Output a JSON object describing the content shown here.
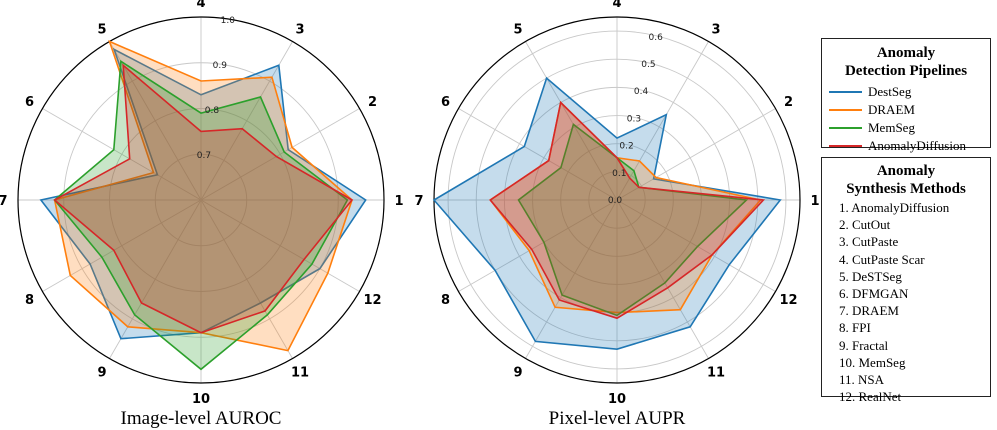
{
  "pipelines_legend": {
    "title_line1": "Anomaly",
    "title_line2": "Detection Pipelines",
    "items": [
      {
        "label": "DestSeg",
        "color": "#1f77b4"
      },
      {
        "label": "DRAEM",
        "color": "#ff7f0e"
      },
      {
        "label": "MemSeg",
        "color": "#2ca02c"
      },
      {
        "label": "AnomalyDiffusion",
        "color": "#d62728"
      }
    ]
  },
  "methods_legend": {
    "title_line1": "Anomaly",
    "title_line2": "Synthesis Methods",
    "items": [
      "1. AnomalyDiffusion",
      "2. CutOut",
      "3. CutPaste",
      "4. CutPaste Scar",
      "5. DeSTSeg",
      "6. DFMGAN",
      "7. DRAEM",
      "8. FPI",
      "9. Fractal",
      "10. MemSeg",
      "11. NSA",
      "12. RealNet"
    ]
  },
  "chart_data": [
    {
      "type": "radar",
      "title": "Image-level AUROC",
      "categories": [
        "1",
        "2",
        "3",
        "4",
        "5",
        "6",
        "7",
        "8",
        "9",
        "10",
        "11",
        "12"
      ],
      "rmin": 0.6,
      "rmax": 1.0,
      "rticks": [
        0.7,
        0.8,
        0.9,
        1.0
      ],
      "rtick_labels": [
        "0.7",
        "0.8",
        "0.9",
        "1.0"
      ],
      "series": [
        {
          "name": "DestSeg",
          "color": "#1f77b4",
          "values": [
            0.96,
            0.82,
            0.94,
            0.83,
            0.98,
            0.71,
            0.95,
            0.88,
            0.95,
            0.89,
            0.86,
            0.9
          ]
        },
        {
          "name": "DRAEM",
          "color": "#ff7f0e",
          "values": [
            0.93,
            0.83,
            0.91,
            0.86,
            1.0,
            0.72,
            0.92,
            0.93,
            0.92,
            0.89,
            0.98,
            0.92
          ]
        },
        {
          "name": "MemSeg",
          "color": "#2ca02c",
          "values": [
            0.92,
            0.81,
            0.86,
            0.79,
            0.95,
            0.82,
            0.92,
            0.85,
            0.89,
            0.97,
            0.89,
            0.88
          ]
        },
        {
          "name": "AnomalyDiffusion",
          "color": "#d62728",
          "values": [
            0.93,
            0.79,
            0.78,
            0.75,
            0.94,
            0.78,
            0.92,
            0.82,
            0.86,
            0.89,
            0.88,
            0.86
          ]
        }
      ]
    },
    {
      "type": "radar",
      "title": "Pixel-level AUPR",
      "categories": [
        "1",
        "2",
        "3",
        "4",
        "5",
        "6",
        "7",
        "8",
        "9",
        "10",
        "11",
        "12"
      ],
      "rmin": 0.0,
      "rmax": 0.65,
      "rticks": [
        0.1,
        0.2,
        0.3,
        0.4,
        0.5,
        0.6
      ],
      "rtick_labels": [
        "0.1",
        "0.2",
        "0.3",
        "0.4",
        "0.5",
        "0.6"
      ],
      "center_label": "0.0",
      "series": [
        {
          "name": "DestSeg",
          "color": "#1f77b4",
          "values": [
            0.58,
            0.15,
            0.35,
            0.22,
            0.5,
            0.38,
            0.65,
            0.5,
            0.58,
            0.53,
            0.52,
            0.46
          ]
        },
        {
          "name": "DRAEM",
          "color": "#ff7f0e",
          "values": [
            0.51,
            0.16,
            0.16,
            0.15,
            0.4,
            0.28,
            0.45,
            0.36,
            0.44,
            0.4,
            0.45,
            0.39
          ]
        },
        {
          "name": "MemSeg",
          "color": "#2ca02c",
          "values": [
            0.46,
            0.09,
            0.12,
            0.15,
            0.31,
            0.23,
            0.35,
            0.3,
            0.39,
            0.41,
            0.34,
            0.33
          ]
        },
        {
          "name": "AnomalyDiffusion",
          "color": "#d62728",
          "values": [
            0.52,
            0.09,
            0.09,
            0.15,
            0.4,
            0.28,
            0.45,
            0.35,
            0.41,
            0.42,
            0.36,
            0.39
          ]
        }
      ]
    }
  ]
}
